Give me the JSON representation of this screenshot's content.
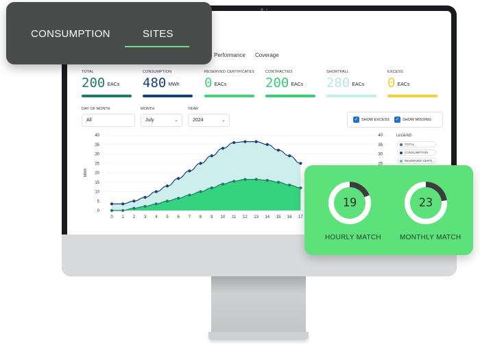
{
  "tab_card": {
    "tabs": [
      "CONSUMPTION",
      "SITES"
    ],
    "active_tab": "SITES"
  },
  "screen": {
    "tabs": [
      "Performance",
      "Coverage"
    ],
    "stats": [
      {
        "label": "TOTAL",
        "value": "200",
        "unit": "EACs",
        "color": "#1f7a6a"
      },
      {
        "label": "CONSUMPTION",
        "value": "480",
        "unit": "MWh",
        "color": "#163f7a"
      },
      {
        "label": "RESERVED CERTIFICATES",
        "value": "0",
        "unit": "EACs",
        "color": "#49d17a"
      },
      {
        "label": "CONTRACTED",
        "value": "200",
        "unit": "EACs",
        "color": "#3cc978"
      },
      {
        "label": "SHORTFALL",
        "value": "280",
        "unit": "EACs",
        "color": "#c6ecea"
      },
      {
        "label": "EXCESS",
        "value": "0",
        "unit": "EACs",
        "color": "#f2cf3c"
      }
    ],
    "filters": {
      "day_label": "DAY OF MONTH",
      "day_value": "All",
      "month_label": "MONTH",
      "month_value": "July",
      "year_label": "YEAR",
      "year_value": "2024"
    },
    "checkboxes": {
      "show_excess": "SHOW EXCESS",
      "show_missing": "SHOW MISSING"
    },
    "legend": {
      "title": "LEGEND",
      "items": [
        {
          "label": "TOTAL",
          "color": "#1f7a6a"
        },
        {
          "label": "CONSUMPTION",
          "color": "#163f7a"
        },
        {
          "label": "RESERVED CERTI...",
          "color": "#49d17a"
        }
      ]
    }
  },
  "chart_data": {
    "type": "area",
    "ylabel": "MWh",
    "ylim": [
      0,
      40
    ],
    "y_ticks": [
      0,
      5,
      10,
      15,
      20,
      25,
      30,
      35,
      40
    ],
    "x": [
      0,
      1,
      2,
      3,
      4,
      5,
      6,
      7,
      8,
      9,
      10,
      11,
      12,
      13,
      14,
      15,
      16,
      17
    ],
    "series": [
      {
        "name": "CONSUMPTION",
        "color": "#163f7a",
        "fill": "#cdeeec",
        "values": [
          3.5,
          3.5,
          5,
          7,
          10,
          13,
          17,
          21,
          25,
          29,
          33,
          36,
          36.5,
          36.5,
          35,
          32,
          29,
          25
        ]
      },
      {
        "name": "TOTAL",
        "color": "#1f7a6a",
        "fill": "#35d27f",
        "values": [
          0,
          0,
          1.2,
          2.2,
          3.5,
          5,
          6.5,
          8.2,
          10,
          12,
          14,
          15.5,
          16.5,
          16.5,
          16,
          15,
          13.5,
          12
        ]
      }
    ]
  },
  "match_card": {
    "hourly": {
      "value": "19",
      "label": "HOURLY MATCH",
      "fraction": 0.19
    },
    "monthly": {
      "value": "23",
      "label": "MONTHLY MATCH",
      "fraction": 0.23
    }
  }
}
